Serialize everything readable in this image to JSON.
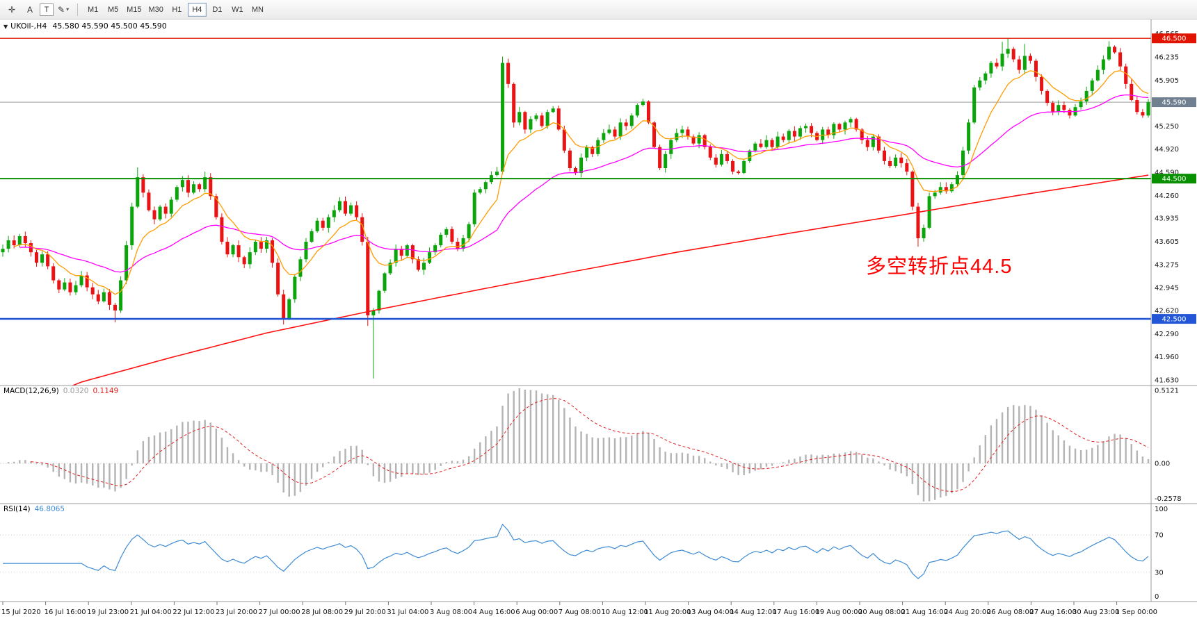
{
  "toolbar": {
    "tools": [
      {
        "name": "crosshair",
        "glyph": "✛"
      },
      {
        "name": "text-label",
        "glyph": "A"
      },
      {
        "name": "text-tool",
        "glyph": "T"
      },
      {
        "name": "draw-tools",
        "glyph": "✎",
        "caret": "▾"
      }
    ],
    "timeframes": [
      {
        "label": "M1",
        "selected": false
      },
      {
        "label": "M5",
        "selected": false
      },
      {
        "label": "M15",
        "selected": false
      },
      {
        "label": "M30",
        "selected": false
      },
      {
        "label": "H1",
        "selected": false
      },
      {
        "label": "H4",
        "selected": true
      },
      {
        "label": "D1",
        "selected": false
      },
      {
        "label": "W1",
        "selected": false
      },
      {
        "label": "MN",
        "selected": false
      }
    ]
  },
  "chart": {
    "collapse_glyph": "▼",
    "caption_symbol": "UKOil-,H4",
    "caption_ohlc": "45.580 45.590 45.500 45.590",
    "annotation": {
      "text": "多空转折点44.5",
      "color": "#ff0000"
    },
    "price_ticks": [
      46.565,
      46.235,
      45.905,
      45.25,
      44.92,
      44.59,
      44.26,
      43.935,
      43.605,
      43.275,
      42.945,
      42.62,
      42.29,
      41.96,
      41.63
    ],
    "hlines": [
      {
        "price": 46.5,
        "label": "46.500",
        "color": "#e01400",
        "width": 1.4
      },
      {
        "price": 45.59,
        "label": "45.590",
        "color": "#9a9a9a",
        "badge": "#708090",
        "width": 1,
        "current": true
      },
      {
        "price": 44.5,
        "label": "44.500",
        "color": "#089000",
        "width": 2
      },
      {
        "price": 42.5,
        "label": "42.500",
        "color": "#2356d6",
        "width": 2.6
      }
    ],
    "colors": {
      "up": "#0ba50b",
      "down": "#ea1212",
      "ma_fast": "#ff9c00",
      "ma_mid": "#ff00ff",
      "ma_slow": "#ff1010",
      "hist": "#b4b4b4",
      "signal": "#e02020",
      "rsi": "#3d8bd4"
    }
  },
  "chart_data": {
    "type": "candlestick",
    "symbol": "UKOil-",
    "timeframe": "H4",
    "open": "45.580",
    "high": "45.590",
    "low": "45.500",
    "close": "45.590",
    "price_range": [
      41.56,
      46.72
    ],
    "closes": [
      43.5,
      43.62,
      43.55,
      43.68,
      43.58,
      43.45,
      43.3,
      43.42,
      43.25,
      43.05,
      42.92,
      43.02,
      42.88,
      42.98,
      43.12,
      42.95,
      42.85,
      42.75,
      42.88,
      42.7,
      42.62,
      43.05,
      43.55,
      44.1,
      44.52,
      44.3,
      44.05,
      43.92,
      44.1,
      44.0,
      44.2,
      44.38,
      44.48,
      44.3,
      44.42,
      44.35,
      44.52,
      44.25,
      43.95,
      43.6,
      43.42,
      43.55,
      43.38,
      43.28,
      43.45,
      43.6,
      43.5,
      43.62,
      43.3,
      42.85,
      42.5,
      42.78,
      43.1,
      43.35,
      43.6,
      43.75,
      43.9,
      43.8,
      43.95,
      44.05,
      44.18,
      44.0,
      44.12,
      43.95,
      43.6,
      42.55,
      42.62,
      42.9,
      43.15,
      43.3,
      43.5,
      43.4,
      43.55,
      43.35,
      43.2,
      43.3,
      43.45,
      43.55,
      43.7,
      43.78,
      43.6,
      43.5,
      43.65,
      43.85,
      44.3,
      44.35,
      44.45,
      44.55,
      44.6,
      46.15,
      45.85,
      45.3,
      45.45,
      45.2,
      45.35,
      45.4,
      45.25,
      45.45,
      45.5,
      45.2,
      44.9,
      44.65,
      44.58,
      44.8,
      44.95,
      44.85,
      45.05,
      45.15,
      45.2,
      45.1,
      45.3,
      45.25,
      45.4,
      45.55,
      45.6,
      45.3,
      44.95,
      44.65,
      44.85,
      45.05,
      45.15,
      45.2,
      45.1,
      45.0,
      45.12,
      44.95,
      44.8,
      44.7,
      44.85,
      44.75,
      44.6,
      44.58,
      44.75,
      44.9,
      45.0,
      44.95,
      45.05,
      44.95,
      45.1,
      45.05,
      45.18,
      45.1,
      45.22,
      45.25,
      45.15,
      45.05,
      45.2,
      45.12,
      45.28,
      45.2,
      45.3,
      45.35,
      45.2,
      45.05,
      44.95,
      45.1,
      44.9,
      44.75,
      44.68,
      44.8,
      44.72,
      44.6,
      44.1,
      43.65,
      43.8,
      44.25,
      44.3,
      44.38,
      44.32,
      44.42,
      44.55,
      44.9,
      45.3,
      45.8,
      45.9,
      46.0,
      46.15,
      46.1,
      46.28,
      46.35,
      46.2,
      46.05,
      46.25,
      46.18,
      45.95,
      45.75,
      45.58,
      45.45,
      45.55,
      45.48,
      45.4,
      45.52,
      45.6,
      45.75,
      45.9,
      46.05,
      46.2,
      46.38,
      46.3,
      46.1,
      45.85,
      45.62,
      45.45,
      45.4,
      45.59
    ],
    "wick_overrides": {
      "20": {
        "low": 42.45
      },
      "24": {
        "high": 44.66
      },
      "36": {
        "high": 44.6
      },
      "50": {
        "low": 42.42
      },
      "65": {
        "low": 42.4
      },
      "66": {
        "low": 41.65
      },
      "89": {
        "high": 46.24
      },
      "163": {
        "low": 43.53
      },
      "178": {
        "high": 46.45
      },
      "179": {
        "high": 46.5
      },
      "182": {
        "high": 46.42
      },
      "197": {
        "high": 46.46
      },
      "198": {
        "high": 46.4
      }
    },
    "ma_fast_period": 9,
    "ma_mid_period": 34,
    "ma_slow_anchors": [
      [
        0,
        41.15
      ],
      [
        14,
        41.6
      ],
      [
        30,
        41.95
      ],
      [
        47,
        42.3
      ],
      [
        66,
        42.62
      ],
      [
        85,
        42.92
      ],
      [
        100,
        43.15
      ],
      [
        120,
        43.45
      ],
      [
        140,
        43.72
      ],
      [
        160,
        43.98
      ],
      [
        180,
        44.25
      ],
      [
        204,
        44.55
      ]
    ],
    "x_labels": [
      "15 Jul 2020",
      "16 Jul 16:00",
      "19 Jul 23:00",
      "21 Jul 04:00",
      "22 Jul 12:00",
      "23 Jul 20:00",
      "27 Jul 00:00",
      "28 Jul 08:00",
      "29 Jul 20:00",
      "31 Jul 04:00",
      "3 Aug 08:00",
      "4 Aug 16:00",
      "6 Aug 00:00",
      "7 Aug 08:00",
      "10 Aug 12:00",
      "11 Aug 20:00",
      "13 Aug 04:00",
      "14 Aug 12:00",
      "17 Aug 16:00",
      "19 Aug 00:00",
      "20 Aug 08:00",
      "21 Aug 16:00",
      "24 Aug 20:00",
      "26 Aug 08:00",
      "27 Aug 16:00",
      "30 Aug 23:00",
      "1 Sep 00:00"
    ]
  },
  "macd": {
    "name": "MACD(12,26,9)",
    "value1": "0.0320",
    "value2": "0.1149",
    "fast": 12,
    "slow": 26,
    "signal": 9,
    "axis": [
      {
        "v": 0.5121,
        "label": "0.5121"
      },
      {
        "v": 0,
        "label": "0.00"
      },
      {
        "v": -0.2578,
        "label": "-0.2578"
      }
    ]
  },
  "rsi": {
    "name": "RSI(14)",
    "value": "46.8065",
    "period": 14,
    "levels": [
      70,
      30
    ],
    "axis": [
      100,
      70,
      30,
      0
    ]
  }
}
